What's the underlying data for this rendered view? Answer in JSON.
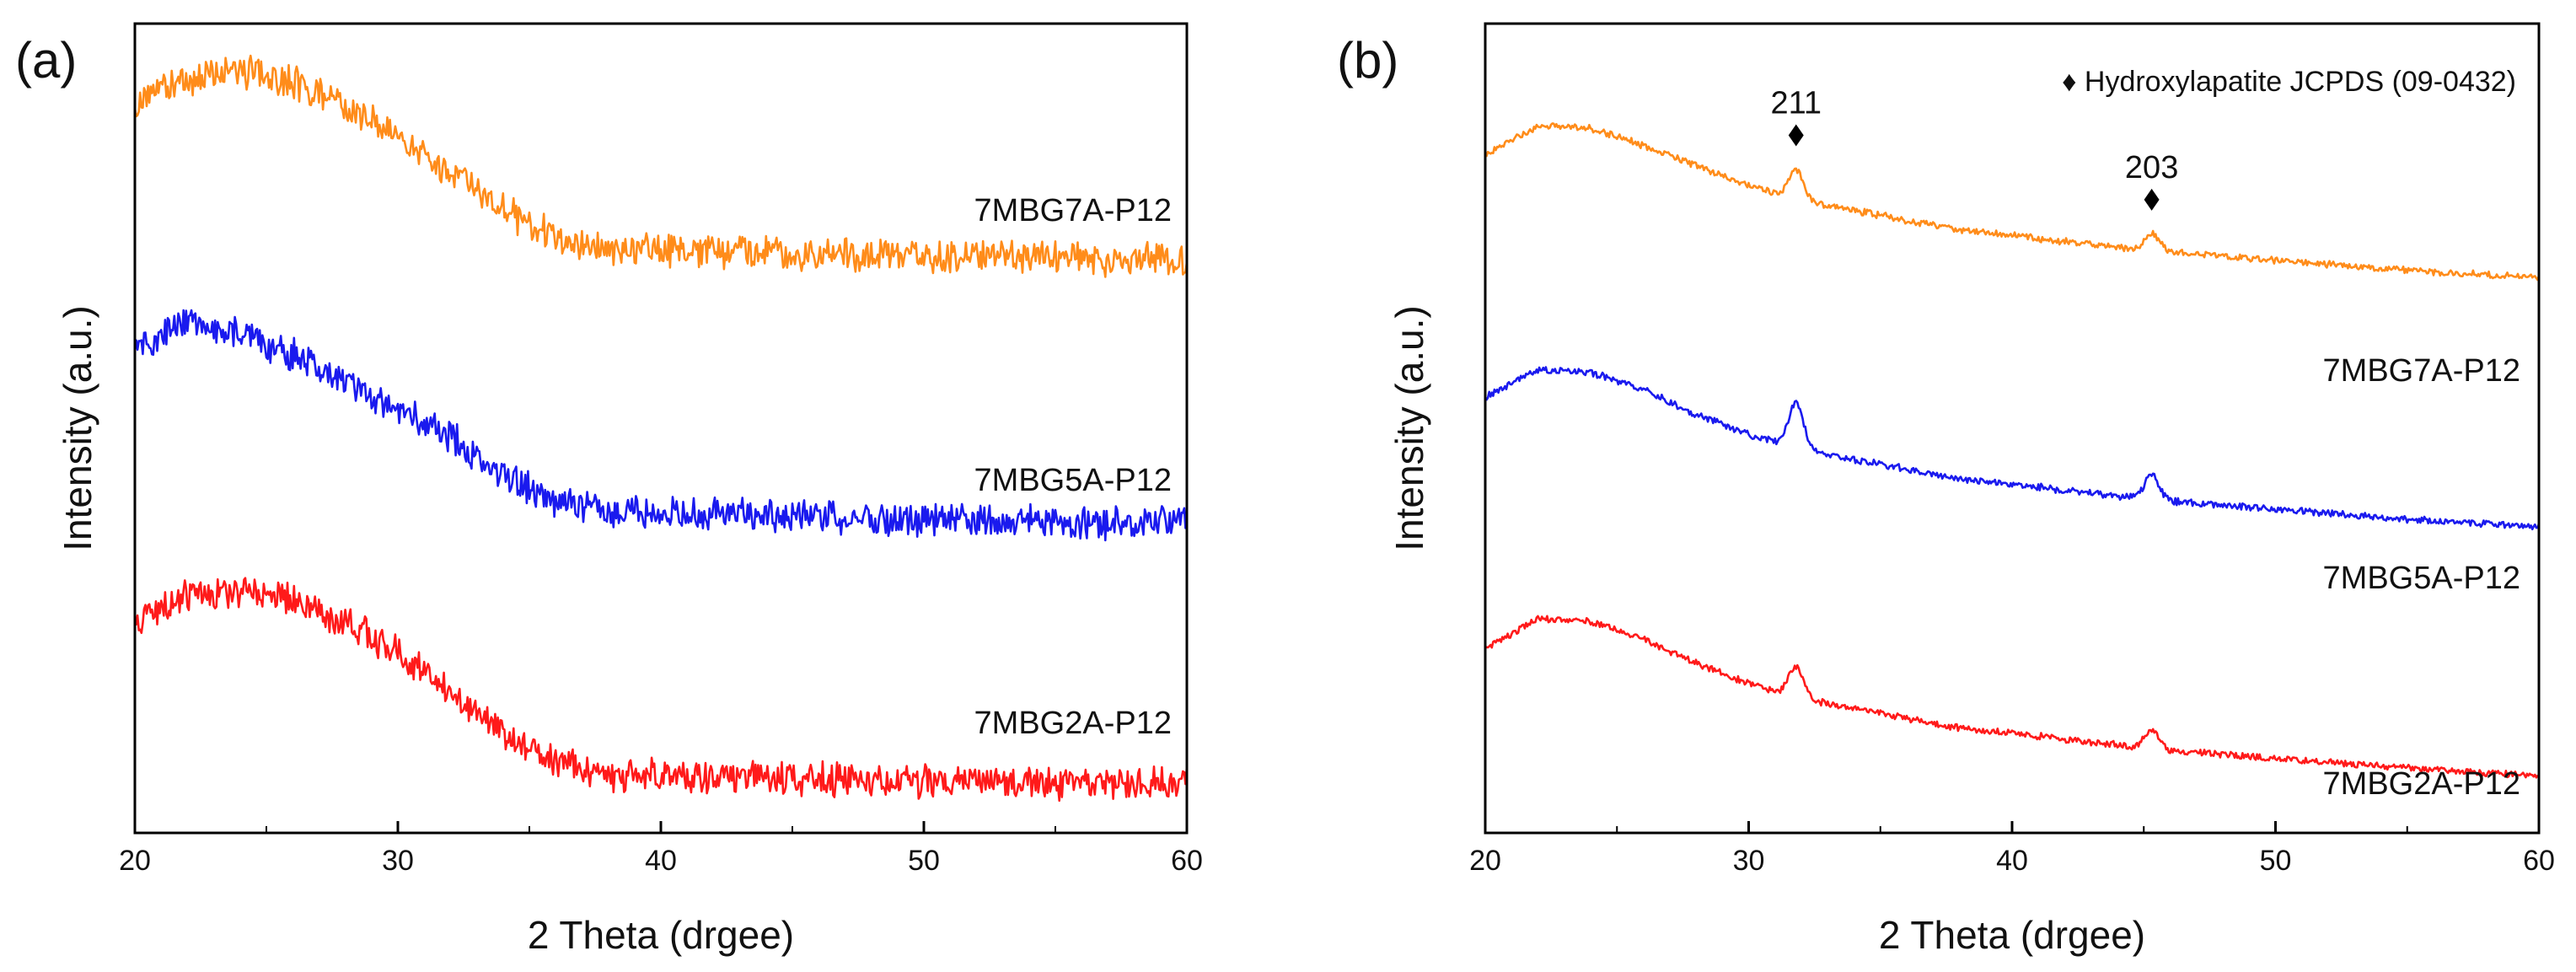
{
  "chart_data": [
    {
      "panel": "(a)",
      "type": "line",
      "xlabel": "2 Theta (drgee)",
      "ylabel": "Intensity (a.u.)",
      "xlim": [
        20,
        60
      ],
      "xticks": [
        "20",
        "30",
        "40",
        "50",
        "60"
      ],
      "yticks_shown": false,
      "series": [
        {
          "name": "7MBG7A-P12",
          "color": "#ff8c1a",
          "offset": 2.0,
          "x": [
            20,
            22,
            24,
            26,
            28,
            30,
            32,
            34,
            36,
            38,
            40,
            45,
            50,
            55,
            60
          ],
          "y": [
            0.64,
            0.74,
            0.77,
            0.73,
            0.63,
            0.52,
            0.39,
            0.24,
            0.13,
            0.08,
            0.08,
            0.07,
            0.06,
            0.05,
            0.04
          ]
        },
        {
          "name": "7MBG5A-P12",
          "color": "#1a1aee",
          "offset": 1.0,
          "x": [
            20,
            22,
            24,
            26,
            28,
            30,
            32,
            34,
            36,
            38,
            40,
            45,
            50,
            55,
            60
          ],
          "y": [
            0.71,
            0.81,
            0.77,
            0.68,
            0.58,
            0.47,
            0.37,
            0.22,
            0.12,
            0.08,
            0.08,
            0.07,
            0.05,
            0.04,
            0.04
          ]
        },
        {
          "name": "7MBG2A-P12",
          "color": "#ff1a1a",
          "offset": 0.0,
          "x": [
            20,
            22,
            24,
            26,
            28,
            30,
            32,
            34,
            36,
            38,
            40,
            45,
            50,
            55,
            60
          ],
          "y": [
            0.66,
            0.76,
            0.78,
            0.74,
            0.66,
            0.54,
            0.4,
            0.24,
            0.12,
            0.07,
            0.07,
            0.06,
            0.05,
            0.04,
            0.04
          ]
        }
      ]
    },
    {
      "panel": "(b)",
      "type": "line",
      "xlabel": "2 Theta (drgee)",
      "ylabel": "Intensity (a.u.)",
      "xlim": [
        20,
        60
      ],
      "xticks": [
        "20",
        "30",
        "40",
        "50",
        "60"
      ],
      "yticks_shown": false,
      "legend": "♦ Hydroxylapatite JCPDS (09-0432)",
      "peaks": [
        {
          "label": "211",
          "x": 31.8
        },
        {
          "label": "203",
          "x": 45.3
        }
      ],
      "series": [
        {
          "name": "7MBG7A-P12",
          "color": "#ff8c1a",
          "offset": 2.0,
          "x": [
            20,
            22,
            24,
            26,
            28,
            30,
            32,
            34,
            36,
            38,
            40,
            45,
            50,
            55,
            60
          ],
          "y": [
            0.52,
            0.64,
            0.63,
            0.56,
            0.48,
            0.4,
            0.34,
            0.3,
            0.26,
            0.22,
            0.2,
            0.14,
            0.1,
            0.06,
            0.03
          ],
          "peak_heights": [
            0.12,
            0.07
          ]
        },
        {
          "name": "7MBG5A-P12",
          "color": "#1a1aee",
          "offset": 1.0,
          "x": [
            20,
            22,
            24,
            26,
            28,
            30,
            32,
            34,
            36,
            38,
            40,
            45,
            50,
            55,
            60
          ],
          "y": [
            0.55,
            0.66,
            0.65,
            0.58,
            0.48,
            0.4,
            0.34,
            0.3,
            0.26,
            0.22,
            0.2,
            0.14,
            0.1,
            0.06,
            0.03
          ],
          "peak_heights": [
            0.18,
            0.1
          ]
        },
        {
          "name": "7MBG2A-P12",
          "color": "#ff1a1a",
          "offset": 0.0,
          "x": [
            20,
            22,
            24,
            26,
            28,
            30,
            32,
            34,
            36,
            38,
            40,
            45,
            50,
            55,
            60
          ],
          "y": [
            0.54,
            0.66,
            0.65,
            0.58,
            0.48,
            0.4,
            0.34,
            0.3,
            0.26,
            0.22,
            0.2,
            0.14,
            0.1,
            0.06,
            0.03
          ],
          "peak_heights": [
            0.12,
            0.07
          ]
        }
      ]
    }
  ]
}
